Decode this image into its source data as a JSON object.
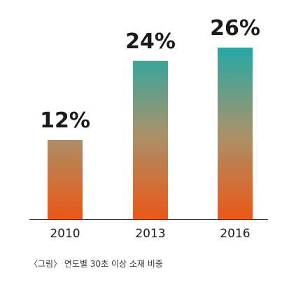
{
  "chart_data": {
    "type": "bar",
    "categories": [
      "2010",
      "2013",
      "2016"
    ],
    "values": [
      12,
      24,
      26
    ],
    "value_labels": [
      "12%",
      "24%",
      "26%"
    ],
    "title": "",
    "xlabel": "",
    "ylabel": "",
    "ylim": [
      0,
      26
    ],
    "grid": false,
    "legend": "none",
    "colors": {
      "gradient_top": "#24a9a6",
      "gradient_mid": "#a8926a",
      "gradient_bottom": "#eb5716",
      "baseline": "#333333",
      "label_text": "#1a1a1a"
    }
  },
  "caption": "〈그림〉 연도별 30초 이상 소재 비중"
}
